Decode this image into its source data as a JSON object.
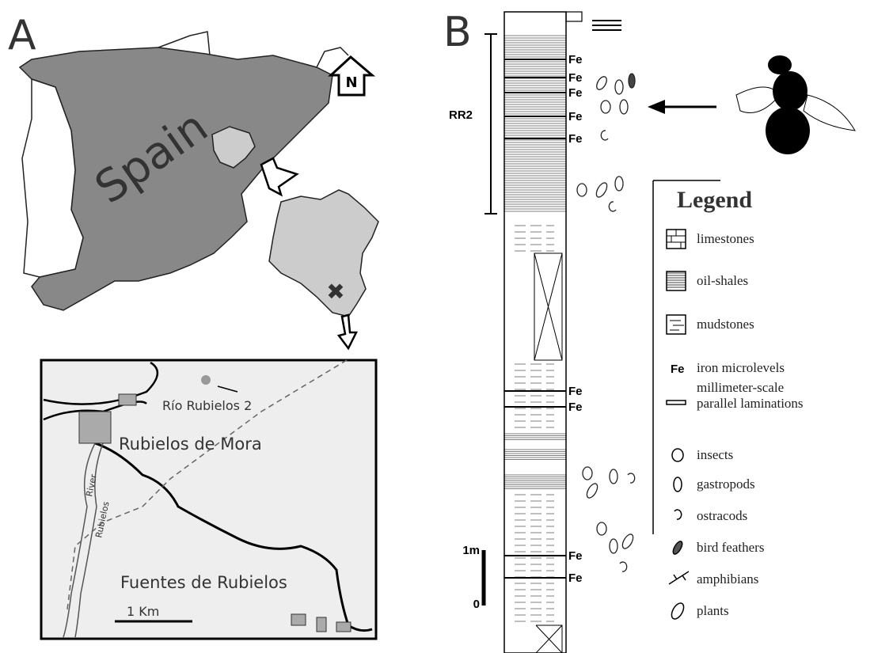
{
  "panel_a": {
    "label": "A",
    "country": "Spain",
    "north": "N",
    "inset": {
      "site": "Río Rubielos 2",
      "town_1": "Rubielos de Mora",
      "river": [
        "Rubielos",
        "River"
      ],
      "town_2": "Fuentes de Rubielos",
      "scale": "1 Km"
    }
  },
  "panel_b": {
    "label": "B",
    "unit": "RR2",
    "fe_labels": [
      "Fe",
      "Fe",
      "Fe",
      "Fe",
      "Fe",
      "Fe",
      "Fe",
      "Fe",
      "Fe"
    ],
    "scale_top": "1m",
    "scale_bottom": "0",
    "legend": {
      "title": "Legend",
      "items": [
        {
          "label": "limestones"
        },
        {
          "label": "oil-shales"
        },
        {
          "label": "mudstones"
        },
        {
          "symbol": "Fe",
          "label": "iron microlevels"
        },
        {
          "label": [
            "millimeter-scale",
            "parallel laminations"
          ]
        },
        {
          "label": "insects"
        },
        {
          "label": "gastropods"
        },
        {
          "label": "ostracods"
        },
        {
          "label": "bird feathers"
        },
        {
          "label": "amphibians"
        },
        {
          "label": "plants"
        }
      ]
    }
  }
}
